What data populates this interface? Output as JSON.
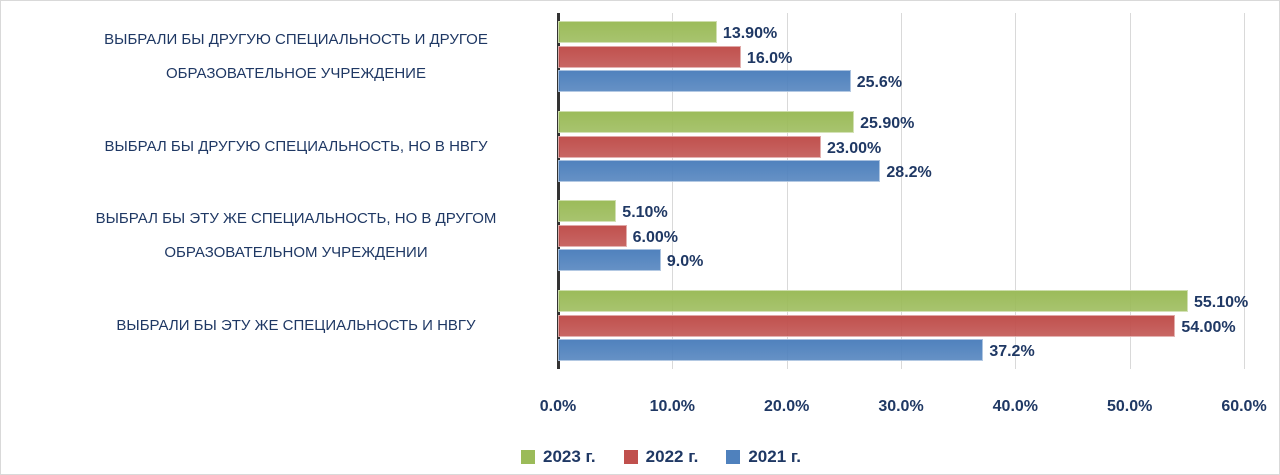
{
  "chart_data": {
    "type": "bar",
    "orientation": "horizontal",
    "categories": [
      "ВЫБРАЛИ БЫ ДРУГУЮ СПЕЦИАЛЬНОСТЬ И ДРУГОЕ ОБРАЗОВАТЕЛЬНОЕ УЧРЕЖДЕНИЕ",
      "ВЫБРАЛ БЫ ДРУГУЮ СПЕЦИАЛЬНОСТЬ, НО В НВГУ",
      "ВЫБРАЛ БЫ ЭТУ ЖЕ СПЕЦИАЛЬНОСТЬ, НО В ДРУГОМ ОБРАЗОВАТЕЛЬНОМ УЧРЕЖДЕНИИ",
      "ВЫБРАЛИ БЫ ЭТУ ЖЕ СПЕЦИАЛЬНОСТЬ И НВГУ"
    ],
    "series": [
      {
        "name": "2023 г.",
        "color": "#9bbb59",
        "values": [
          13.9,
          25.9,
          5.1,
          55.1
        ],
        "value_labels": [
          "13.90%",
          "25.90%",
          "5.10%",
          "55.10%"
        ]
      },
      {
        "name": "2022 г.",
        "color": "#c0504d",
        "values": [
          16.0,
          23.0,
          6.0,
          54.0
        ],
        "value_labels": [
          "16.0%",
          "23.00%",
          "6.00%",
          "54.00%"
        ]
      },
      {
        "name": "2021 г.",
        "color": "#4f81bd",
        "values": [
          25.6,
          28.2,
          9.0,
          37.2
        ],
        "value_labels": [
          "25.6%",
          "28.2%",
          "9.0%",
          "37.2%"
        ]
      }
    ],
    "xlim": [
      0,
      60
    ],
    "xticks": [
      {
        "value": 0,
        "label": "0.0%"
      },
      {
        "value": 10,
        "label": "10.0%"
      },
      {
        "value": 20,
        "label": "20.0%"
      },
      {
        "value": 30,
        "label": "30.0%"
      },
      {
        "value": 40,
        "label": "40.0%"
      },
      {
        "value": 50,
        "label": "50.0%"
      },
      {
        "value": 60,
        "label": "60.0%"
      }
    ],
    "grid": true,
    "legend": "bottom"
  }
}
